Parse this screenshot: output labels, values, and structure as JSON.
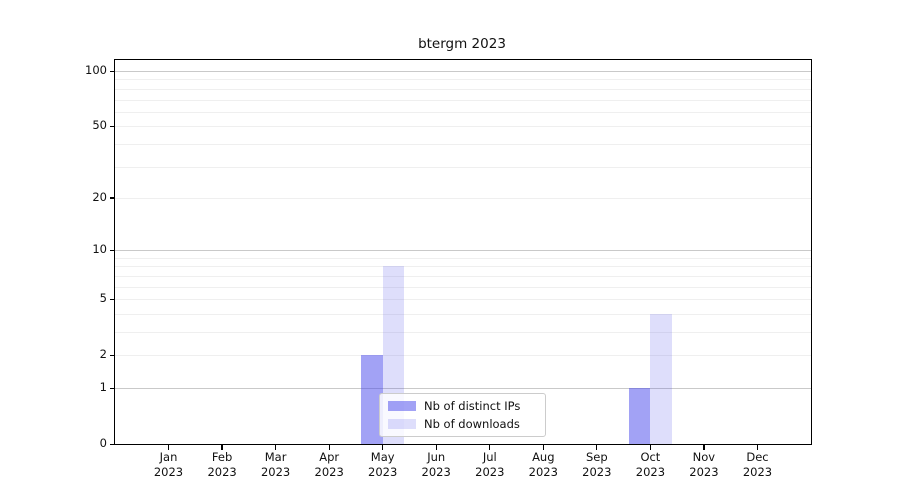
{
  "chart_data": {
    "type": "bar",
    "title": "btergm 2023",
    "categories": [
      "Jan",
      "Feb",
      "Mar",
      "Apr",
      "May",
      "Jun",
      "Jul",
      "Aug",
      "Sep",
      "Oct",
      "Nov",
      "Dec"
    ],
    "x_tick_year": "2023",
    "series": [
      {
        "name": "Nb of distinct IPs",
        "color": "rgba(70,70,235,0.50)",
        "values": [
          0,
          0,
          0,
          0,
          2,
          0,
          0,
          0,
          0,
          1,
          0,
          0
        ]
      },
      {
        "name": "Nb of downloads",
        "color": "rgba(70,70,235,0.18)",
        "values": [
          0,
          0,
          0,
          0,
          8,
          0,
          0,
          0,
          0,
          4,
          0,
          0
        ]
      }
    ],
    "yscale": "log1p",
    "ylim": [
      0,
      101
    ],
    "y_ticks": [
      0,
      1,
      2,
      5,
      10,
      20,
      50,
      100
    ],
    "major_gridlines": [
      1,
      10,
      100
    ],
    "minor_gridlines": [
      2,
      3,
      4,
      5,
      6,
      7,
      8,
      9,
      20,
      30,
      40,
      50,
      60,
      70,
      80,
      90
    ],
    "grid": true,
    "legend_position": "lower center-left inside plot",
    "xlabel": "",
    "ylabel": ""
  },
  "colors": {
    "axis": "#000000",
    "major_grid": "#c9c9c9",
    "minor_grid": "#efefef",
    "background": "#ffffff",
    "text": "#111111"
  }
}
